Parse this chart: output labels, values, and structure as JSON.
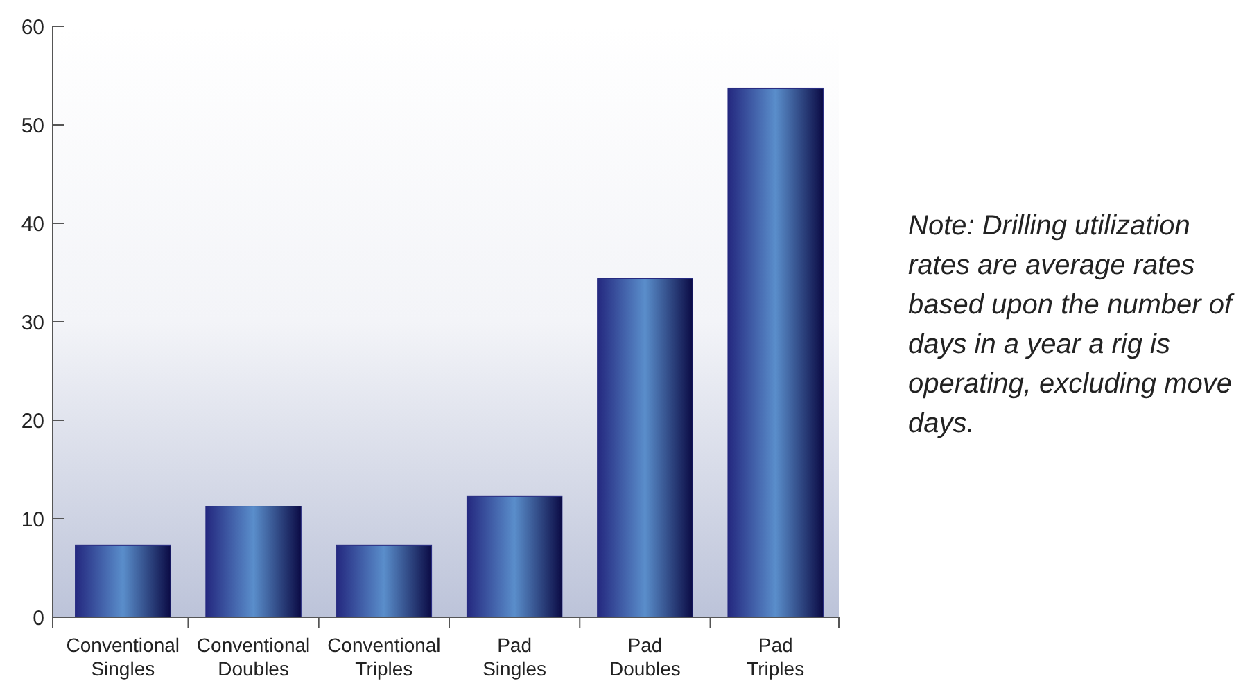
{
  "chart_data": {
    "type": "bar",
    "categories": [
      "Conventional Singles",
      "Conventional Doubles",
      "Conventional Triples",
      "Pad Singles",
      "Pad Doubles",
      "Pad Triples"
    ],
    "values": [
      7.3,
      11.3,
      7.3,
      12.3,
      34.4,
      53.7
    ],
    "color": "#24287f",
    "ylim": [
      0,
      60
    ],
    "yticks": [
      0,
      10,
      20,
      30,
      40,
      50,
      60
    ],
    "grid": false,
    "annotations": [
      "Note: Drilling utilization rates are average rates based upon the number of days in a year a rig is operating, excluding move days."
    ]
  }
}
